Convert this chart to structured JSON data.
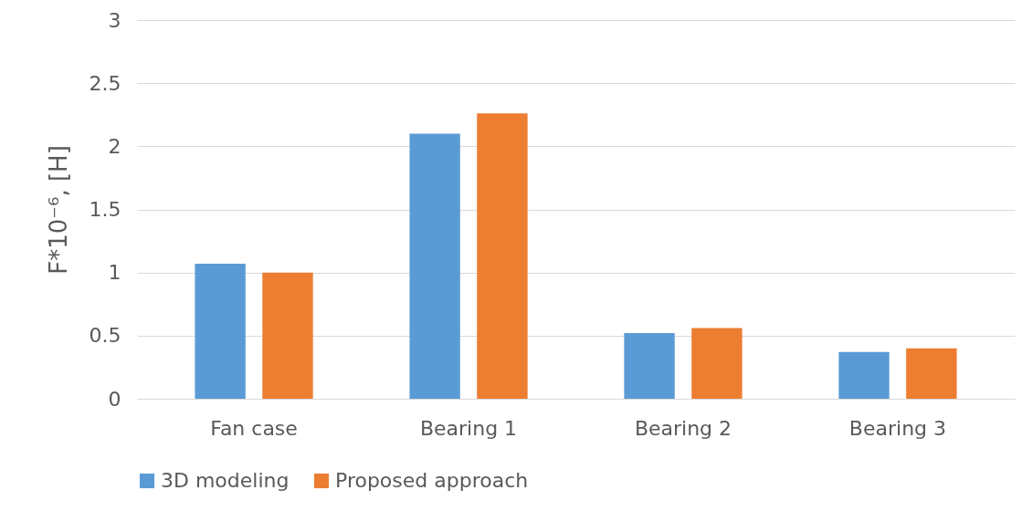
{
  "chart_data": {
    "type": "bar",
    "ylabel": "F*10⁻⁶, [H]",
    "categories": [
      "Fan case",
      "Bearing 1",
      "Bearing 2",
      "Bearing 3"
    ],
    "series": [
      {
        "name": "3D modeling",
        "color": "#5b9bd5",
        "values": [
          1.07,
          2.1,
          0.52,
          0.37
        ]
      },
      {
        "name": "Proposed approach",
        "color": "#ed7d31",
        "values": [
          1.0,
          2.26,
          0.56,
          0.4
        ]
      }
    ],
    "ylim": [
      0,
      3
    ],
    "yticks": [
      0,
      0.5,
      1,
      1.5,
      2,
      2.5,
      3
    ],
    "grid": "y",
    "legend": "bottom"
  }
}
